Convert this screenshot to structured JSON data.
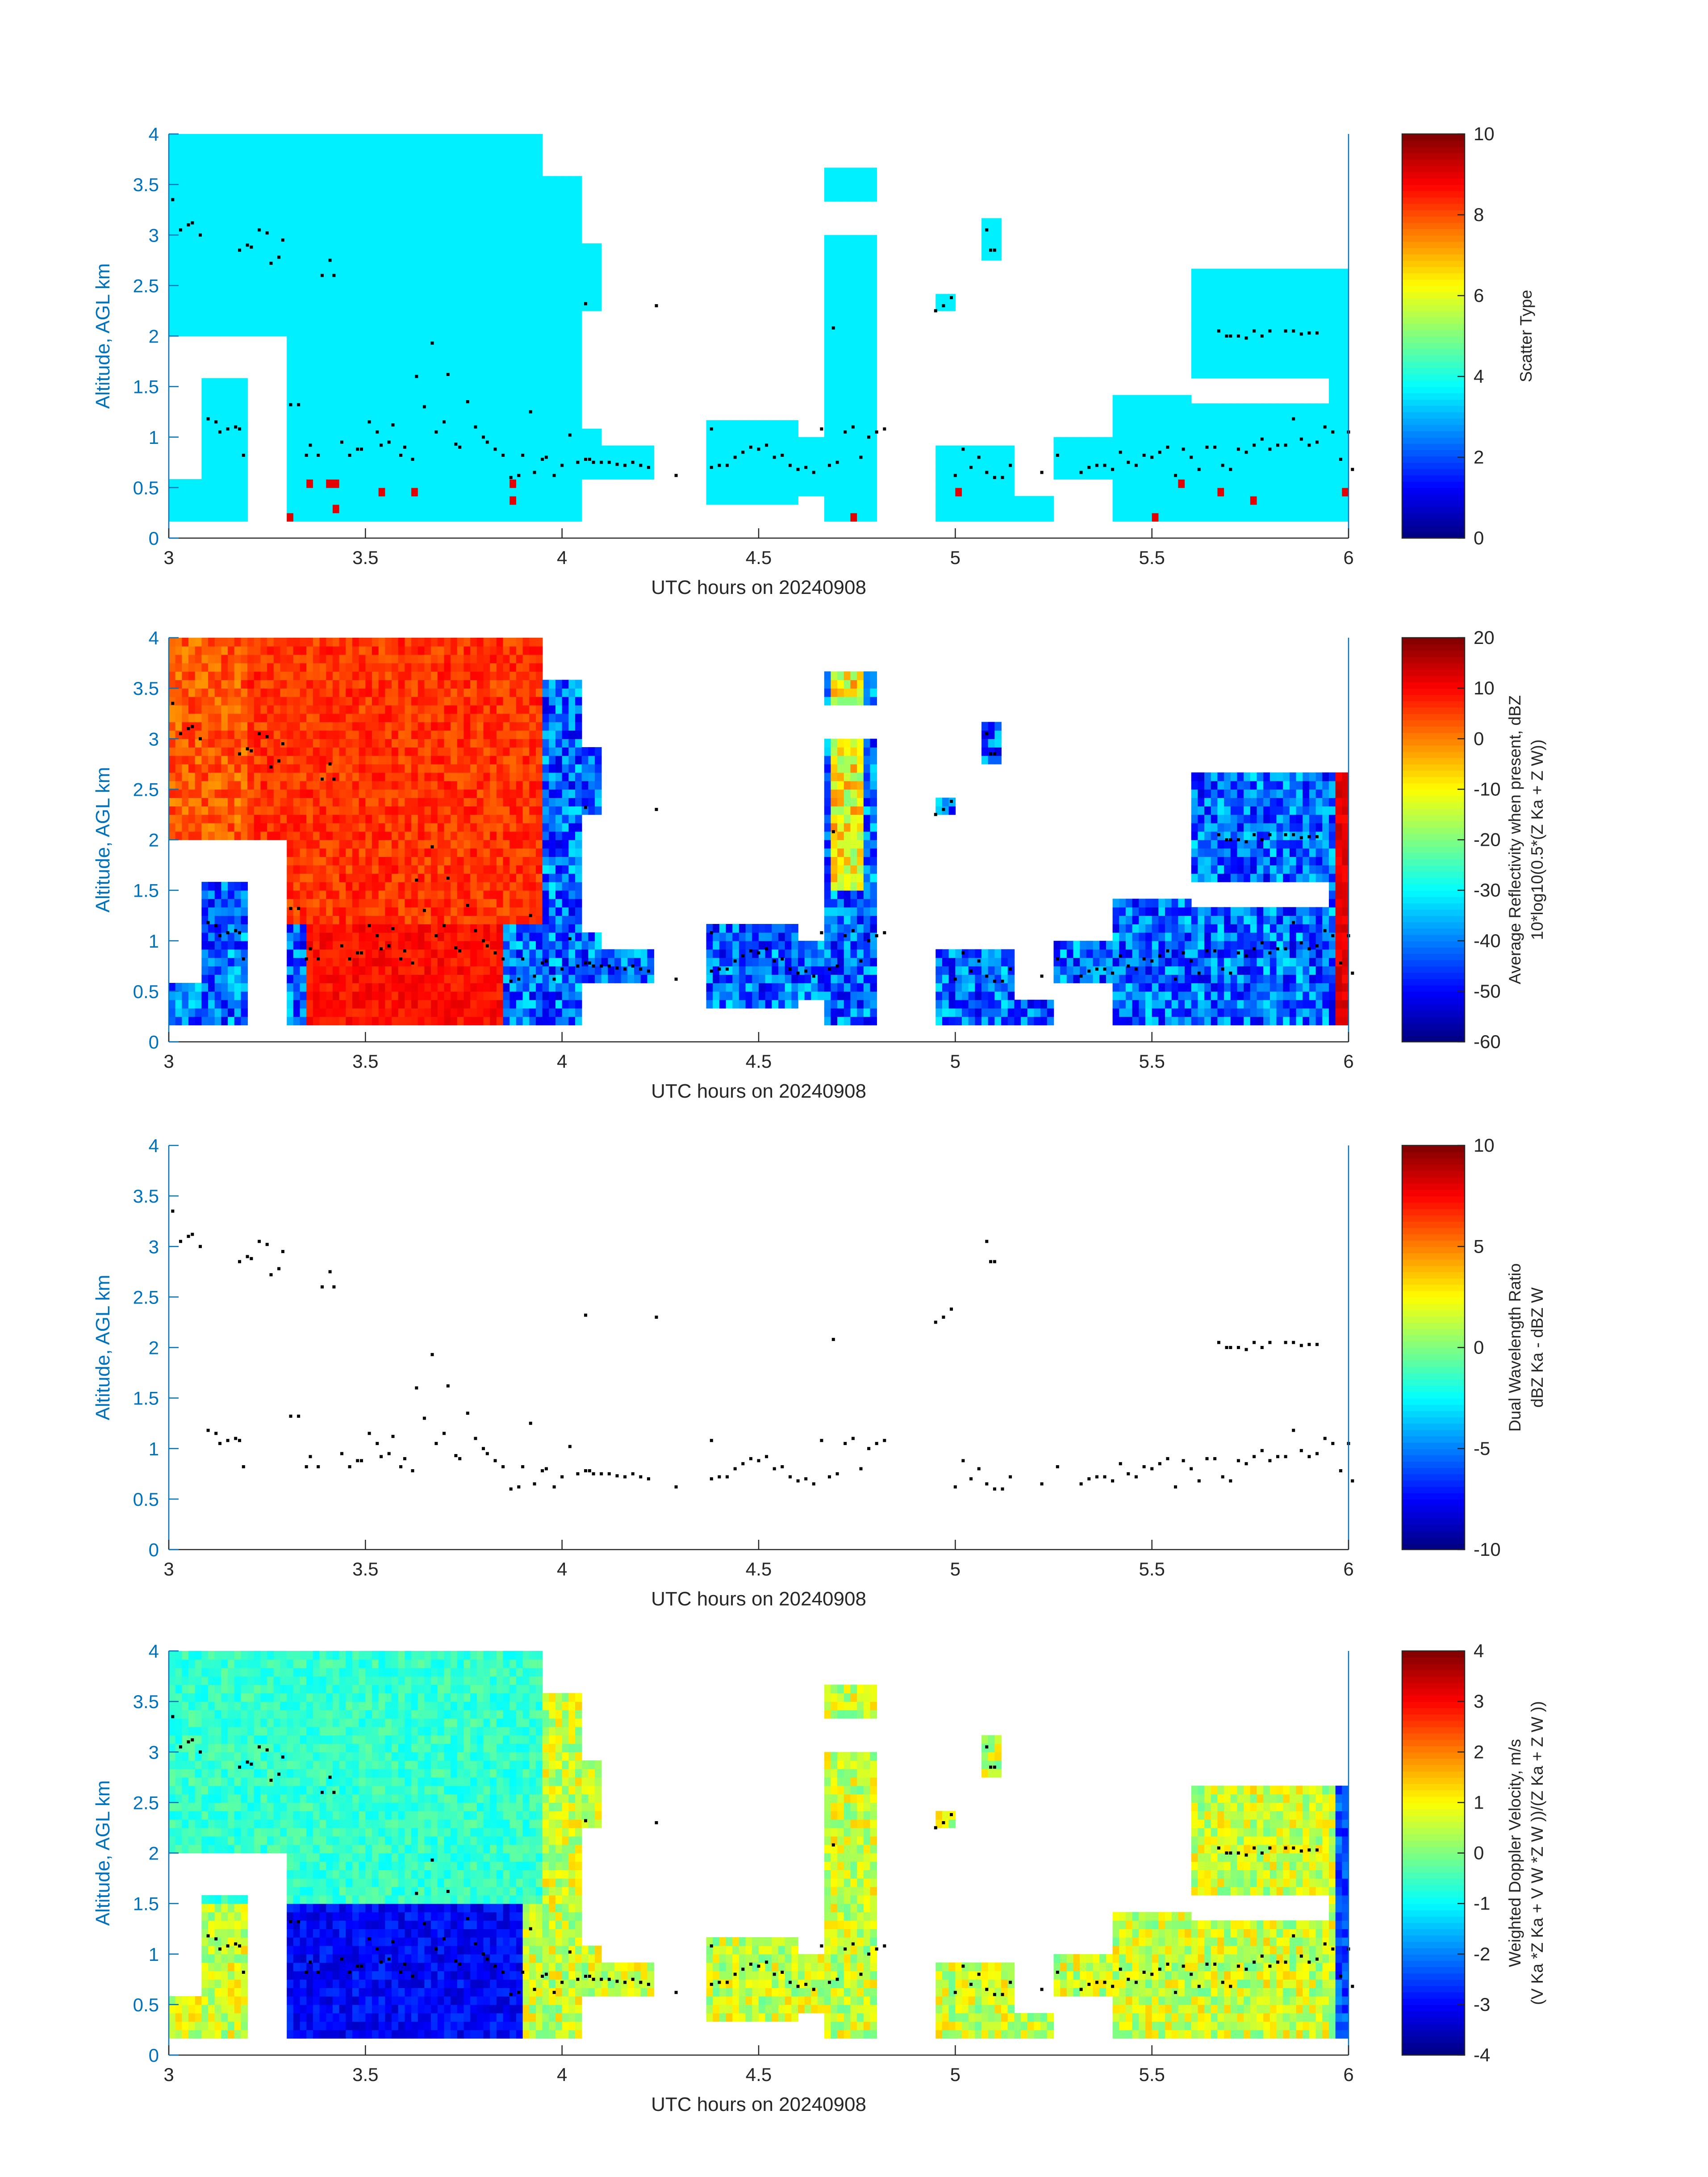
{
  "chart_data": [
    {
      "type": "heatmap",
      "xlabel": "UTC hours on 20240908",
      "ylabel": "Altitude, AGL km",
      "xlim": [
        3,
        6
      ],
      "ylim": [
        0,
        4
      ],
      "xticks": [
        "3",
        "3.5",
        "4",
        "4.5",
        "5",
        "5.5",
        "6"
      ],
      "yticks": [
        "0",
        "0.5",
        "1",
        "1.5",
        "2",
        "2.5",
        "3",
        "3.5",
        "4"
      ],
      "colorbar": {
        "label_lines": [
          "Scatter Type"
        ],
        "clim": [
          0,
          10
        ],
        "ticks": [
          "0",
          "2",
          "4",
          "6",
          "8",
          "10"
        ],
        "colormap": "jet"
      },
      "field": "scatter_type"
    },
    {
      "type": "heatmap",
      "xlabel": "UTC hours on 20240908",
      "ylabel": "Altitude, AGL km",
      "xlim": [
        3,
        6
      ],
      "ylim": [
        0,
        4
      ],
      "xticks": [
        "3",
        "3.5",
        "4",
        "4.5",
        "5",
        "5.5",
        "6"
      ],
      "yticks": [
        "0",
        "0.5",
        "1",
        "1.5",
        "2",
        "2.5",
        "3",
        "3.5",
        "4"
      ],
      "colorbar": {
        "label_lines": [
          "Average Reflectivity when present, dBZ",
          "10*log10(0.5*(Z Ka + Z W))"
        ],
        "clim": [
          -60,
          20
        ],
        "ticks": [
          "-60",
          "-50",
          "-40",
          "-30",
          "-20",
          "-10",
          "0",
          "10",
          "20"
        ],
        "colormap": "jet"
      },
      "field": "reflectivity"
    },
    {
      "type": "heatmap",
      "xlabel": "UTC hours on 20240908",
      "ylabel": "Altitude, AGL km",
      "xlim": [
        3,
        6
      ],
      "ylim": [
        0,
        4
      ],
      "xticks": [
        "3",
        "3.5",
        "4",
        "4.5",
        "5",
        "5.5",
        "6"
      ],
      "yticks": [
        "0",
        "0.5",
        "1",
        "1.5",
        "2",
        "2.5",
        "3",
        "3.5",
        "4"
      ],
      "colorbar": {
        "label_lines": [
          "Dual Wavelength Ratio",
          "dBZ Ka - dBZ W"
        ],
        "clim": [
          -10,
          10
        ],
        "ticks": [
          "-10",
          "-5",
          "0",
          "5",
          "10"
        ],
        "colormap": "jet"
      },
      "field": "dwr"
    },
    {
      "type": "heatmap",
      "xlabel": "UTC hours on 20240908",
      "ylabel": "Altitude, AGL km",
      "xlim": [
        3,
        6
      ],
      "ylim": [
        0,
        4
      ],
      "xticks": [
        "3",
        "3.5",
        "4",
        "4.5",
        "5",
        "5.5",
        "6"
      ],
      "yticks": [
        "0",
        "0.5",
        "1",
        "1.5",
        "2",
        "2.5",
        "3",
        "3.5",
        "4"
      ],
      "colorbar": {
        "label_lines": [
          "Weighted Doppler Velocity, m/s",
          "(V Ka *Z Ka + V W *Z W ))/(Z Ka + Z W ))"
        ],
        "clim": [
          -4,
          4
        ],
        "ticks": [
          "-4",
          "-3",
          "-2",
          "-1",
          "0",
          "1",
          "2",
          "3",
          "4"
        ],
        "colormap": "jet"
      },
      "field": "doppler"
    }
  ],
  "cloud_base_points": [
    [
      3.01,
      3.35
    ],
    [
      3.03,
      3.05
    ],
    [
      3.05,
      3.1
    ],
    [
      3.06,
      3.12
    ],
    [
      3.08,
      3.0
    ],
    [
      3.1,
      1.18
    ],
    [
      3.12,
      1.15
    ],
    [
      3.13,
      1.05
    ],
    [
      3.15,
      1.08
    ],
    [
      3.17,
      1.1
    ],
    [
      3.18,
      1.08
    ],
    [
      3.18,
      2.85
    ],
    [
      3.2,
      2.9
    ],
    [
      3.21,
      2.88
    ],
    [
      3.23,
      3.05
    ],
    [
      3.25,
      3.02
    ],
    [
      3.26,
      2.72
    ],
    [
      3.28,
      2.78
    ],
    [
      3.29,
      2.95
    ],
    [
      3.19,
      0.82
    ],
    [
      3.31,
      1.32
    ],
    [
      3.33,
      1.32
    ],
    [
      3.35,
      0.82
    ],
    [
      3.36,
      0.92
    ],
    [
      3.38,
      0.82
    ],
    [
      3.39,
      2.6
    ],
    [
      3.41,
      2.75
    ],
    [
      3.42,
      2.6
    ],
    [
      3.44,
      0.95
    ],
    [
      3.46,
      0.82
    ],
    [
      3.48,
      0.88
    ],
    [
      3.49,
      0.88
    ],
    [
      3.51,
      1.15
    ],
    [
      3.53,
      1.05
    ],
    [
      3.54,
      0.92
    ],
    [
      3.56,
      0.95
    ],
    [
      3.57,
      1.12
    ],
    [
      3.59,
      0.82
    ],
    [
      3.6,
      0.9
    ],
    [
      3.62,
      0.78
    ],
    [
      3.63,
      1.6
    ],
    [
      3.65,
      1.3
    ],
    [
      3.67,
      1.93
    ],
    [
      3.68,
      1.05
    ],
    [
      3.7,
      1.15
    ],
    [
      3.71,
      1.62
    ],
    [
      3.73,
      0.93
    ],
    [
      3.74,
      0.9
    ],
    [
      3.76,
      1.35
    ],
    [
      3.78,
      1.1
    ],
    [
      3.8,
      1.0
    ],
    [
      3.81,
      0.95
    ],
    [
      3.83,
      0.88
    ],
    [
      3.85,
      0.82
    ],
    [
      3.87,
      0.6
    ],
    [
      3.89,
      0.62
    ],
    [
      3.9,
      0.82
    ],
    [
      3.92,
      1.25
    ],
    [
      3.93,
      0.65
    ],
    [
      3.95,
      0.78
    ],
    [
      3.96,
      0.8
    ],
    [
      3.98,
      0.62
    ],
    [
      4.0,
      0.72
    ],
    [
      4.02,
      1.02
    ],
    [
      4.04,
      0.75
    ],
    [
      4.06,
      0.78
    ],
    [
      4.07,
      0.78
    ],
    [
      4.08,
      0.75
    ],
    [
      4.1,
      0.75
    ],
    [
      4.12,
      0.75
    ],
    [
      4.14,
      0.73
    ],
    [
      4.16,
      0.72
    ],
    [
      4.18,
      0.75
    ],
    [
      4.2,
      0.72
    ],
    [
      4.22,
      0.7
    ],
    [
      4.06,
      2.32
    ],
    [
      4.24,
      2.3
    ],
    [
      4.29,
      0.62
    ],
    [
      4.38,
      1.08
    ],
    [
      4.38,
      0.7
    ],
    [
      4.4,
      0.72
    ],
    [
      4.42,
      0.72
    ],
    [
      4.44,
      0.8
    ],
    [
      4.46,
      0.85
    ],
    [
      4.48,
      0.9
    ],
    [
      4.5,
      0.88
    ],
    [
      4.52,
      0.92
    ],
    [
      4.54,
      0.8
    ],
    [
      4.56,
      0.82
    ],
    [
      4.58,
      0.72
    ],
    [
      4.6,
      0.68
    ],
    [
      4.62,
      0.7
    ],
    [
      4.64,
      0.65
    ],
    [
      4.66,
      1.08
    ],
    [
      4.68,
      0.72
    ],
    [
      4.7,
      0.75
    ],
    [
      4.72,
      1.05
    ],
    [
      4.74,
      1.1
    ],
    [
      4.76,
      0.8
    ],
    [
      4.78,
      1.0
    ],
    [
      4.8,
      1.05
    ],
    [
      4.82,
      1.08
    ],
    [
      4.69,
      2.08
    ],
    [
      4.95,
      2.25
    ],
    [
      4.97,
      2.3
    ],
    [
      4.99,
      2.38
    ],
    [
      5.0,
      0.62
    ],
    [
      5.02,
      0.88
    ],
    [
      5.04,
      0.7
    ],
    [
      5.06,
      0.8
    ],
    [
      5.08,
      0.65
    ],
    [
      5.1,
      0.6
    ],
    [
      5.12,
      0.6
    ],
    [
      5.14,
      0.72
    ],
    [
      5.08,
      3.05
    ],
    [
      5.09,
      2.85
    ],
    [
      5.1,
      2.85
    ],
    [
      5.22,
      0.65
    ],
    [
      5.26,
      0.82
    ],
    [
      5.32,
      0.65
    ],
    [
      5.34,
      0.7
    ],
    [
      5.36,
      0.72
    ],
    [
      5.38,
      0.72
    ],
    [
      5.4,
      0.68
    ],
    [
      5.42,
      0.85
    ],
    [
      5.44,
      0.75
    ],
    [
      5.46,
      0.72
    ],
    [
      5.48,
      0.82
    ],
    [
      5.5,
      0.8
    ],
    [
      5.52,
      0.85
    ],
    [
      5.54,
      0.9
    ],
    [
      5.56,
      0.62
    ],
    [
      5.58,
      0.88
    ],
    [
      5.6,
      0.8
    ],
    [
      5.62,
      0.68
    ],
    [
      5.64,
      0.9
    ],
    [
      5.66,
      0.9
    ],
    [
      5.68,
      0.72
    ],
    [
      5.7,
      0.68
    ],
    [
      5.72,
      0.88
    ],
    [
      5.74,
      0.85
    ],
    [
      5.76,
      0.92
    ],
    [
      5.78,
      0.98
    ],
    [
      5.8,
      0.88
    ],
    [
      5.82,
      0.92
    ],
    [
      5.84,
      0.92
    ],
    [
      5.86,
      1.18
    ],
    [
      5.88,
      0.98
    ],
    [
      5.9,
      0.92
    ],
    [
      5.92,
      0.95
    ],
    [
      5.94,
      1.1
    ],
    [
      5.96,
      1.05
    ],
    [
      5.98,
      0.78
    ],
    [
      6.0,
      1.05
    ],
    [
      6.01,
      0.68
    ],
    [
      5.67,
      2.05
    ],
    [
      5.69,
      2.0
    ],
    [
      5.7,
      2.0
    ],
    [
      5.72,
      2.0
    ],
    [
      5.74,
      1.98
    ],
    [
      5.76,
      2.05
    ],
    [
      5.78,
      2.0
    ],
    [
      5.8,
      2.05
    ],
    [
      5.84,
      2.05
    ],
    [
      5.86,
      2.05
    ],
    [
      5.88,
      2.02
    ],
    [
      5.9,
      2.03
    ],
    [
      5.92,
      2.03
    ]
  ]
}
